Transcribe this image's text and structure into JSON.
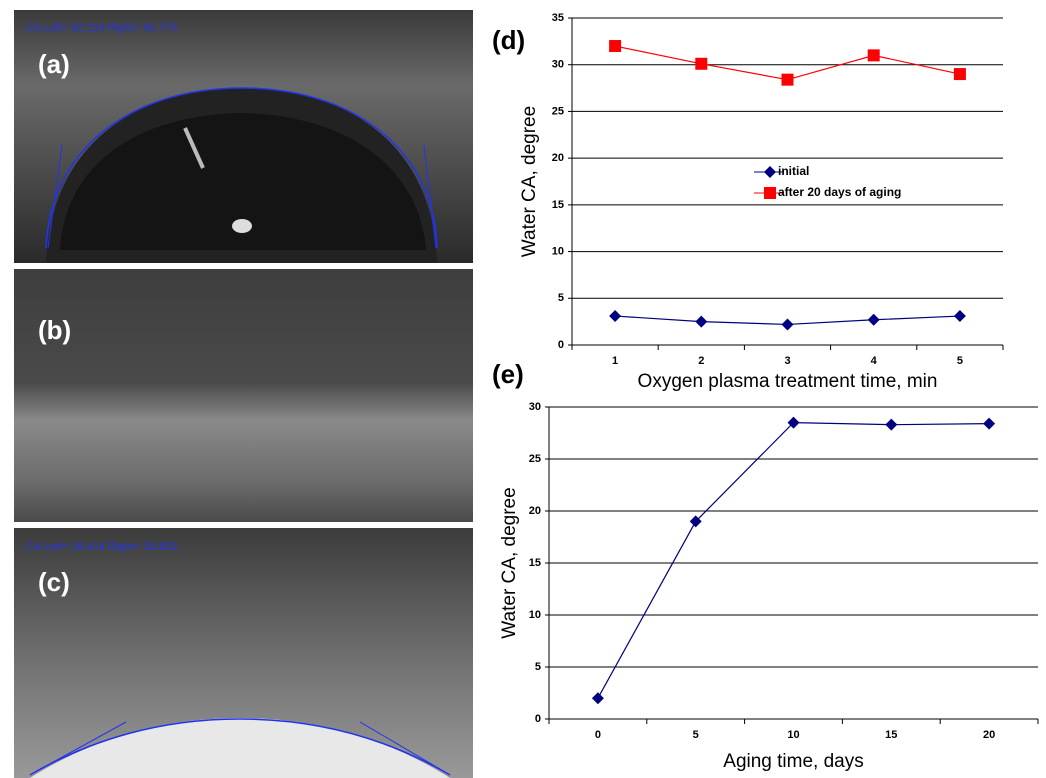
{
  "panels": [
    {
      "label": "(a)",
      "caption": "CA Left= 82.154 Right= 82.773"
    },
    {
      "label": "(b)"
    },
    {
      "label": "(c)",
      "caption": "CA Left= 28.414 Right= 28.803"
    }
  ],
  "chart_data": [
    {
      "type": "line",
      "label": "(d)",
      "categories": [
        "1",
        "2",
        "3",
        "4",
        "5"
      ],
      "series": [
        {
          "name": "initial",
          "color": "#000080",
          "marker": "diamond",
          "values": [
            3.1,
            2.5,
            2.2,
            2.7,
            3.1
          ]
        },
        {
          "name": "after 20 days of aging",
          "color": "#ff0000",
          "marker": "square",
          "values": [
            32,
            30.1,
            28.4,
            31,
            29
          ]
        }
      ],
      "ylim": [
        0,
        35
      ],
      "yticks": [
        0,
        5,
        10,
        15,
        20,
        25,
        30,
        35
      ],
      "grid": true,
      "y_label": "Water CA, degree",
      "x_label": "Oxygen plasma treatment time, min",
      "legend": "center"
    },
    {
      "type": "line",
      "label": "(e)",
      "categories": [
        "0",
        "5",
        "10",
        "15",
        "20"
      ],
      "series": [
        {
          "color": "#000080",
          "marker": "diamond",
          "values": [
            2,
            19,
            28.5,
            28.3,
            28.4
          ]
        }
      ],
      "ylim": [
        0,
        30
      ],
      "yticks": [
        0,
        5,
        10,
        15,
        20,
        25,
        30
      ],
      "grid": true,
      "y_label": "Water CA, degree",
      "x_label": "Aging time, days"
    }
  ]
}
